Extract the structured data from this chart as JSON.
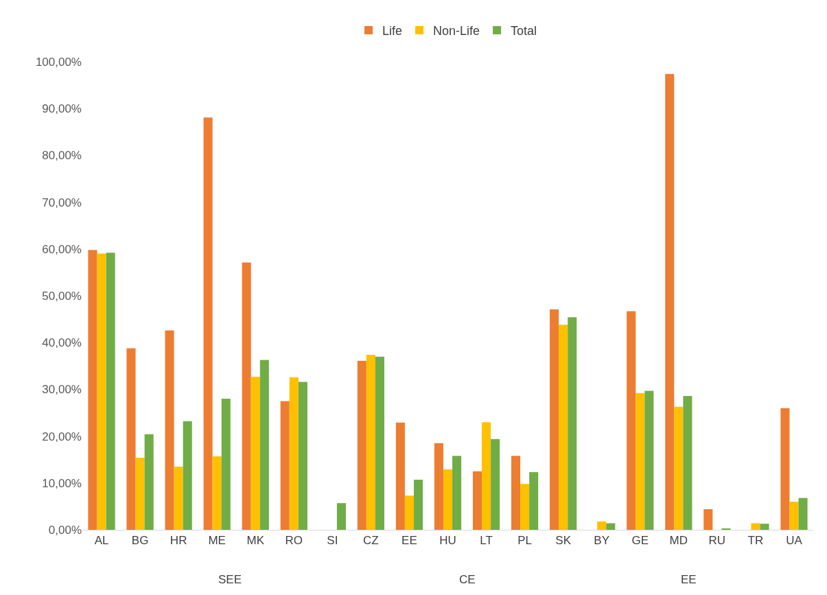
{
  "chart_data": {
    "type": "bar",
    "categories": [
      "AL",
      "BG",
      "HR",
      "ME",
      "MK",
      "RO",
      "SI",
      "CZ",
      "EE",
      "HU",
      "LT",
      "PL",
      "SK",
      "BY",
      "GE",
      "MD",
      "RU",
      "TR",
      "UA"
    ],
    "series": [
      {
        "name": "Life",
        "color": "#ed7d31",
        "values": [
          59.8,
          38.8,
          42.6,
          88.1,
          57.1,
          27.5,
          0,
          36.1,
          22.9,
          18.5,
          12.5,
          15.8,
          47.1,
          0,
          46.7,
          97.4,
          4.4,
          0,
          26.0
        ]
      },
      {
        "name": "Non-Life",
        "color": "#ffc000",
        "values": [
          59.0,
          15.4,
          13.5,
          15.7,
          32.7,
          32.6,
          0,
          37.4,
          7.3,
          12.9,
          23.0,
          9.8,
          43.8,
          1.8,
          29.2,
          26.3,
          0,
          1.4,
          6.0
        ]
      },
      {
        "name": "Total",
        "color": "#70ad47",
        "values": [
          59.2,
          20.4,
          23.2,
          28.0,
          36.3,
          31.6,
          5.7,
          37.0,
          10.7,
          15.8,
          19.4,
          12.3,
          45.4,
          1.4,
          29.7,
          28.6,
          0.3,
          1.3,
          6.8
        ]
      }
    ],
    "annotations": [
      "SEE",
      "CE",
      "EE"
    ],
    "ylim": [
      0,
      100
    ],
    "yticks": [
      {
        "value": 0,
        "label": "0,00%"
      },
      {
        "value": 10,
        "label": "10,00%"
      },
      {
        "value": 20,
        "label": "20,00%"
      },
      {
        "value": 30,
        "label": "30,00%"
      },
      {
        "value": 40,
        "label": "40,00%"
      },
      {
        "value": 50,
        "label": "50,00%"
      },
      {
        "value": 60,
        "label": "60,00%"
      },
      {
        "value": 70,
        "label": "70,00%"
      },
      {
        "value": 80,
        "label": "80,00%"
      },
      {
        "value": 90,
        "label": "90,00%"
      },
      {
        "value": 100,
        "label": "100,00%"
      }
    ],
    "legend": "top",
    "grid": false
  }
}
